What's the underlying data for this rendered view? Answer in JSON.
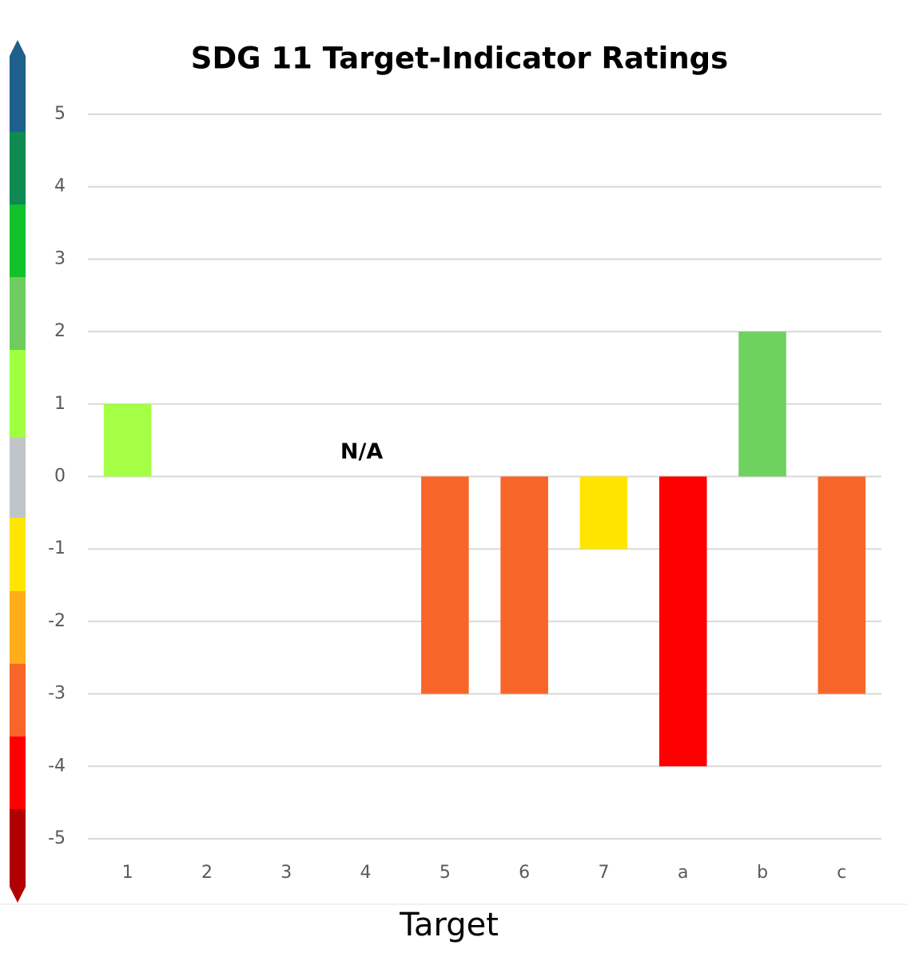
{
  "chart_data": {
    "type": "bar",
    "title": "SDG 11 Target-Indicator Ratings",
    "x_label": "Target",
    "categories": [
      "1",
      "2",
      "3",
      "4",
      "5",
      "6",
      "7",
      "a",
      "b",
      "c"
    ],
    "values": [
      1,
      0,
      0,
      null,
      -3,
      -3,
      -1,
      -4,
      2,
      -3
    ],
    "colors": [
      "#a4ff45",
      "#a4ff45",
      "#a4ff45",
      "#a4ff45",
      "#f76628",
      "#f76628",
      "#ffe500",
      "#ff0000",
      "#6fd160",
      "#f76628"
    ],
    "ylim": [
      -5,
      5
    ],
    "yticks": [
      -5,
      -4,
      -3,
      -2,
      -1,
      0,
      1,
      2,
      3,
      4,
      5
    ],
    "grid": true,
    "annotations": [
      {
        "category": "4",
        "text": "N/A"
      }
    ]
  }
}
